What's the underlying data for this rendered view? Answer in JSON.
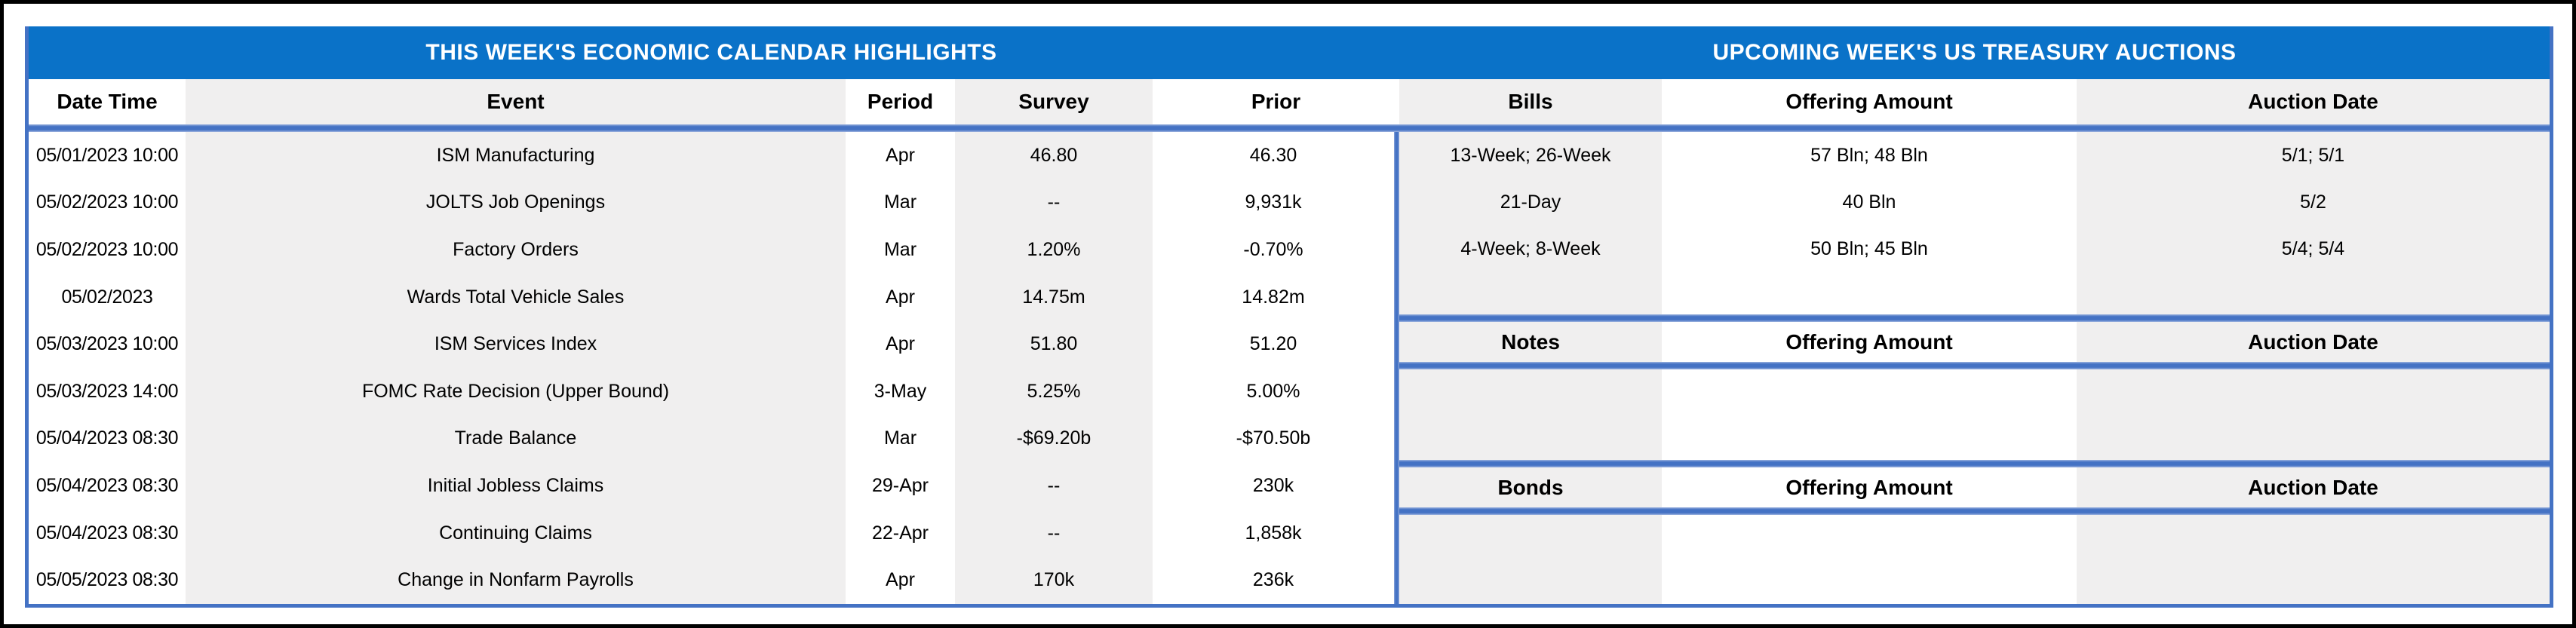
{
  "titles": {
    "left": "THIS WEEK'S ECONOMIC CALENDAR HIGHLIGHTS",
    "right": "UPCOMING WEEK'S US TREASURY AUCTIONS"
  },
  "calendar": {
    "headers": {
      "date": "Date Time",
      "event": "Event",
      "period": "Period",
      "survey": "Survey",
      "prior": "Prior"
    },
    "rows": [
      {
        "date": "05/01/2023 10:00",
        "event": "ISM Manufacturing",
        "period": "Apr",
        "survey": "46.80",
        "prior": "46.30"
      },
      {
        "date": "05/02/2023 10:00",
        "event": "JOLTS Job Openings",
        "period": "Mar",
        "survey": "--",
        "prior": "9,931k"
      },
      {
        "date": "05/02/2023 10:00",
        "event": "Factory Orders",
        "period": "Mar",
        "survey": "1.20%",
        "prior": "-0.70%"
      },
      {
        "date": "05/02/2023",
        "event": "Wards Total Vehicle Sales",
        "period": "Apr",
        "survey": "14.75m",
        "prior": "14.82m"
      },
      {
        "date": "05/03/2023 10:00",
        "event": "ISM Services Index",
        "period": "Apr",
        "survey": "51.80",
        "prior": "51.20"
      },
      {
        "date": "05/03/2023 14:00",
        "event": "FOMC Rate Decision (Upper Bound)",
        "period": "3-May",
        "survey": "5.25%",
        "prior": "5.00%"
      },
      {
        "date": "05/04/2023 08:30",
        "event": "Trade Balance",
        "period": "Mar",
        "survey": "-$69.20b",
        "prior": "-$70.50b"
      },
      {
        "date": "05/04/2023 08:30",
        "event": "Initial Jobless Claims",
        "period": "29-Apr",
        "survey": "--",
        "prior": "230k"
      },
      {
        "date": "05/04/2023 08:30",
        "event": "Continuing Claims",
        "period": "22-Apr",
        "survey": "--",
        "prior": "1,858k"
      },
      {
        "date": "05/05/2023 08:30",
        "event": "Change in Nonfarm Payrolls",
        "period": "Apr",
        "survey": "170k",
        "prior": "236k"
      }
    ]
  },
  "auctions": {
    "bills": {
      "label": "Bills",
      "offering_header": "Offering Amount",
      "auction_header": "Auction Date",
      "rows": [
        {
          "security": "13-Week; 26-Week",
          "offering": "57 Bln; 48 Bln",
          "auction_date": "5/1; 5/1"
        },
        {
          "security": "21-Day",
          "offering": "40 Bln",
          "auction_date": "5/2"
        },
        {
          "security": "4-Week; 8-Week",
          "offering": "50 Bln; 45 Bln",
          "auction_date": "5/4; 5/4"
        }
      ]
    },
    "notes": {
      "label": "Notes",
      "offering_header": "Offering Amount",
      "auction_header": "Auction Date",
      "rows": []
    },
    "bonds": {
      "label": "Bonds",
      "offering_header": "Offering Amount",
      "auction_header": "Auction Date",
      "rows": []
    }
  },
  "colors": {
    "title_bar_blue": "#0A72C8",
    "accent_blue": "#4472C4",
    "row_gray": "#F0EFEF",
    "page_white": "#FFFFFF",
    "outer_border_black": "#000000",
    "text_black": "#000000"
  }
}
